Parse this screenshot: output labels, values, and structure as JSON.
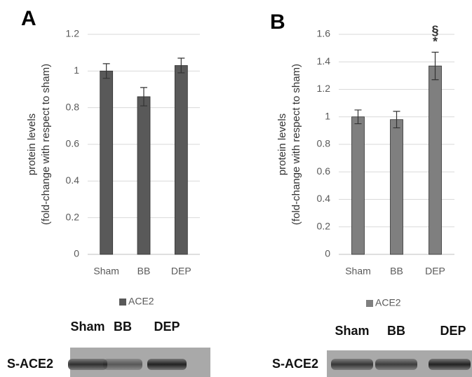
{
  "chart_data": [
    {
      "type": "bar",
      "panel": "A",
      "ylabel": [
        "protein levels",
        "(fold-change with respect to sham)"
      ],
      "categories": [
        "Sham",
        "BB",
        "DEP"
      ],
      "series": [
        {
          "name": "ACE2",
          "color": "#595959",
          "values": [
            1.0,
            0.86,
            1.03
          ],
          "errors": [
            0.04,
            0.05,
            0.04
          ]
        }
      ],
      "ylim": [
        0,
        1.2
      ],
      "yticks": [
        0,
        0.2,
        0.4,
        0.6,
        0.8,
        1,
        1.2
      ],
      "grid": true,
      "legend": "bottom",
      "blot": {
        "lanes": [
          "Sham",
          "BB",
          "DEP"
        ],
        "label": "S-ACE2"
      }
    },
    {
      "type": "bar",
      "panel": "B",
      "ylabel": [
        "protein levels",
        "(fold-change with respect to sham)"
      ],
      "categories": [
        "Sham",
        "BB",
        "DEP"
      ],
      "series": [
        {
          "name": "ACE2",
          "color": "#7f7f7f",
          "values": [
            1.0,
            0.98,
            1.37
          ],
          "errors": [
            0.05,
            0.06,
            0.1
          ]
        }
      ],
      "ylim": [
        0,
        1.6
      ],
      "yticks": [
        0,
        0.2,
        0.4,
        0.6,
        0.8,
        1,
        1.2,
        1.4,
        1.6
      ],
      "grid": true,
      "legend": "bottom",
      "annotations": [
        "§",
        "*"
      ],
      "blot": {
        "lanes": [
          "Sham",
          "BB",
          "DEP"
        ],
        "label": "S-ACE2"
      }
    }
  ]
}
